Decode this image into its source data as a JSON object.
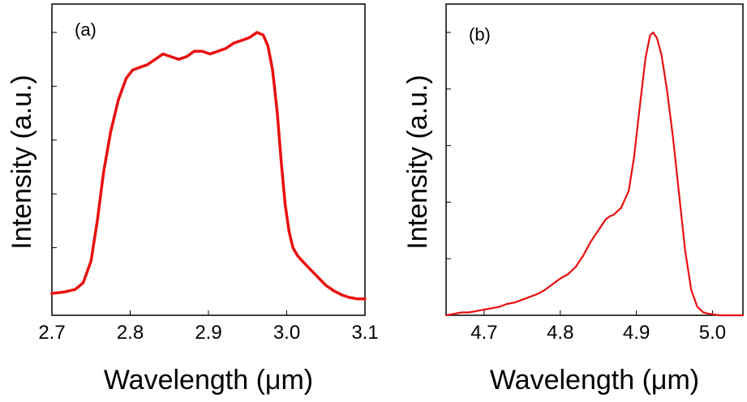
{
  "chart_data": [
    {
      "type": "line",
      "panel_label": "(a)",
      "xlabel": "Wavelength (μm)",
      "ylabel": "Intensity (a.u.)",
      "xlim": [
        2.7,
        3.1
      ],
      "ylim": [
        0,
        1
      ],
      "xticks": [
        2.7,
        2.8,
        2.9,
        3.0,
        3.1
      ],
      "xtick_labels": [
        "2.7",
        "2.8",
        "2.9",
        "3.0",
        "3.1"
      ],
      "yticks": [
        0.2,
        0.4,
        0.6,
        0.8,
        1.0
      ],
      "grid": false,
      "series": [
        {
          "name": "spectrum-a",
          "color": "#e8100f",
          "x": [
            2.7,
            2.715,
            2.73,
            2.74,
            2.75,
            2.758,
            2.766,
            2.775,
            2.785,
            2.795,
            2.803,
            2.812,
            2.822,
            2.832,
            2.842,
            2.852,
            2.862,
            2.872,
            2.882,
            2.892,
            2.902,
            2.912,
            2.922,
            2.932,
            2.942,
            2.952,
            2.962,
            2.97,
            2.976,
            2.982,
            2.988,
            2.993,
            2.998,
            3.003,
            3.008,
            3.014,
            3.02,
            3.03,
            3.04,
            3.05,
            3.06,
            3.07,
            3.08,
            3.09,
            3.1
          ],
          "values": [
            0.03,
            0.035,
            0.045,
            0.07,
            0.15,
            0.3,
            0.48,
            0.63,
            0.75,
            0.83,
            0.86,
            0.87,
            0.88,
            0.9,
            0.92,
            0.91,
            0.9,
            0.91,
            0.93,
            0.93,
            0.92,
            0.93,
            0.94,
            0.96,
            0.97,
            0.98,
            1.0,
            0.99,
            0.95,
            0.86,
            0.7,
            0.52,
            0.36,
            0.26,
            0.2,
            0.17,
            0.15,
            0.12,
            0.09,
            0.06,
            0.04,
            0.025,
            0.015,
            0.01,
            0.01
          ]
        }
      ]
    },
    {
      "type": "line",
      "panel_label": "(b)",
      "xlabel": "Wavelength (μm)",
      "ylabel": "Intensity (a.u.)",
      "xlim": [
        4.65,
        5.04
      ],
      "ylim": [
        0,
        1
      ],
      "xticks": [
        4.7,
        4.8,
        4.9,
        5.0
      ],
      "xtick_labels": [
        "4.7",
        "4.8",
        "4.9",
        "5.0"
      ],
      "yticks": [
        0.2,
        0.4,
        0.6,
        0.8,
        1.0
      ],
      "grid": false,
      "series": [
        {
          "name": "spectrum-b",
          "color": "#e8100f",
          "x": [
            4.65,
            4.66,
            4.67,
            4.68,
            4.69,
            4.7,
            4.71,
            4.72,
            4.73,
            4.74,
            4.75,
            4.76,
            4.77,
            4.78,
            4.79,
            4.8,
            4.81,
            4.82,
            4.83,
            4.84,
            4.85,
            4.86,
            4.865,
            4.87,
            4.88,
            4.89,
            4.897,
            4.905,
            4.912,
            4.918,
            4.922,
            4.927,
            4.933,
            4.94,
            4.948,
            4.956,
            4.964,
            4.972,
            4.98,
            4.988,
            4.996,
            5.01,
            5.025,
            5.04
          ],
          "values": [
            0.0,
            0.005,
            0.01,
            0.01,
            0.015,
            0.02,
            0.025,
            0.03,
            0.04,
            0.045,
            0.055,
            0.065,
            0.075,
            0.09,
            0.11,
            0.13,
            0.145,
            0.17,
            0.21,
            0.26,
            0.3,
            0.34,
            0.35,
            0.355,
            0.38,
            0.44,
            0.56,
            0.75,
            0.91,
            0.99,
            1.0,
            0.98,
            0.92,
            0.8,
            0.63,
            0.43,
            0.23,
            0.09,
            0.03,
            0.01,
            0.005,
            0.0,
            0.0,
            0.0
          ]
        }
      ]
    }
  ]
}
